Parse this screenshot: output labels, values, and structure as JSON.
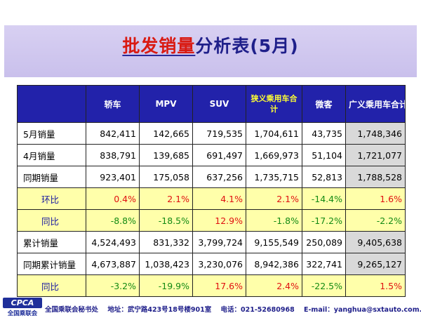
{
  "title": {
    "part1": "批发销量",
    "part2": "分析表(5月)"
  },
  "table": {
    "headers": [
      "",
      "轿车",
      "MPV",
      "SUV",
      "狭义乘用车合计",
      "微客",
      "广义乘用车合计"
    ],
    "rows": [
      {
        "label": "5月销量",
        "kind": "white",
        "cells": [
          "842,411",
          "142,665",
          "719,535",
          "1,704,611",
          "43,735",
          "1,748,346"
        ]
      },
      {
        "label": "4月销量",
        "kind": "white",
        "cells": [
          "838,791",
          "139,685",
          "691,497",
          "1,669,973",
          "51,104",
          "1,721,077"
        ]
      },
      {
        "label": "同期销量",
        "kind": "white",
        "cells": [
          "923,401",
          "175,058",
          "637,256",
          "1,735,715",
          "52,813",
          "1,788,528"
        ]
      },
      {
        "label": "环比",
        "kind": "yellow",
        "cells": [
          "0.4%",
          "2.1%",
          "4.1%",
          "2.1%",
          "-14.4%",
          "1.6%"
        ]
      },
      {
        "label": "同比",
        "kind": "yellow",
        "cells": [
          "-8.8%",
          "-18.5%",
          "12.9%",
          "-1.8%",
          "-17.2%",
          "-2.2%"
        ]
      },
      {
        "label": "累计销量",
        "kind": "white",
        "cells": [
          "4,524,493",
          "831,332",
          "3,799,724",
          "9,155,549",
          "250,089",
          "9,405,638"
        ]
      },
      {
        "label": "同期累计销量",
        "kind": "white",
        "cells": [
          "4,673,887",
          "1,038,423",
          "3,230,076",
          "8,942,386",
          "322,741",
          "9,265,127"
        ]
      },
      {
        "label": "同比",
        "kind": "yellow",
        "cells": [
          "-3.2%",
          "-19.9%",
          "17.6%",
          "2.4%",
          "-22.5%",
          "1.5%"
        ]
      }
    ]
  },
  "footer": {
    "logo_text": "CPCA",
    "logo_sub": "全国乘联会",
    "org": "全国乘联会秘书处",
    "address": "地址：武宁路423号18号楼901室",
    "phone": "电话：021-52680968",
    "email": "E-mail：yanghua@sxtauto.com.cn"
  },
  "colors": {
    "header_bg": "#2222aa",
    "positive": "#e01010",
    "negative": "#138a13",
    "highlight_row": "#ffffaa"
  }
}
